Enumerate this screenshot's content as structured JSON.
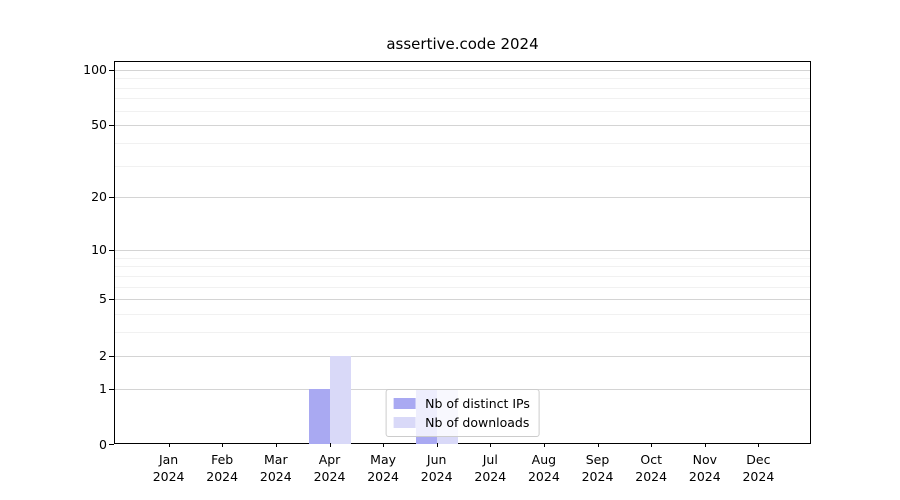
{
  "chart_data": {
    "type": "bar",
    "title": "assertive.code 2024",
    "categories": [
      "Jan",
      "Feb",
      "Mar",
      "Apr",
      "May",
      "Jun",
      "Jul",
      "Aug",
      "Sep",
      "Oct",
      "Nov",
      "Dec"
    ],
    "x_sublabel": "2024",
    "series": [
      {
        "name": "Nb of distinct IPs",
        "color": "#a9a9f2",
        "values": [
          0,
          0,
          0,
          1,
          0,
          1,
          0,
          0,
          0,
          0,
          0,
          0
        ]
      },
      {
        "name": "Nb of downloads",
        "color": "#d9d9f8",
        "values": [
          0,
          0,
          0,
          2,
          0,
          1,
          0,
          0,
          0,
          0,
          0,
          0
        ]
      }
    ],
    "y_scale": "log1p",
    "ylim": [
      0,
      110
    ],
    "y_major_ticks": [
      0,
      1,
      2,
      5,
      10,
      20,
      50,
      100
    ],
    "y_minor_ticks": [
      3,
      4,
      6,
      7,
      8,
      9,
      30,
      40,
      60,
      70,
      80,
      90
    ],
    "grid": true,
    "legend": {
      "position": "lower center",
      "entries": [
        "Nb of distinct IPs",
        "Nb of downloads"
      ]
    },
    "colors": {
      "major_grid": "#d4d4d4",
      "minor_grid": "#f1f1f1",
      "spine": "#000000",
      "legend_border": "#cccccc",
      "bar_distinct_ips": "#a9a9f2",
      "bar_downloads": "#d9d9f8"
    }
  }
}
